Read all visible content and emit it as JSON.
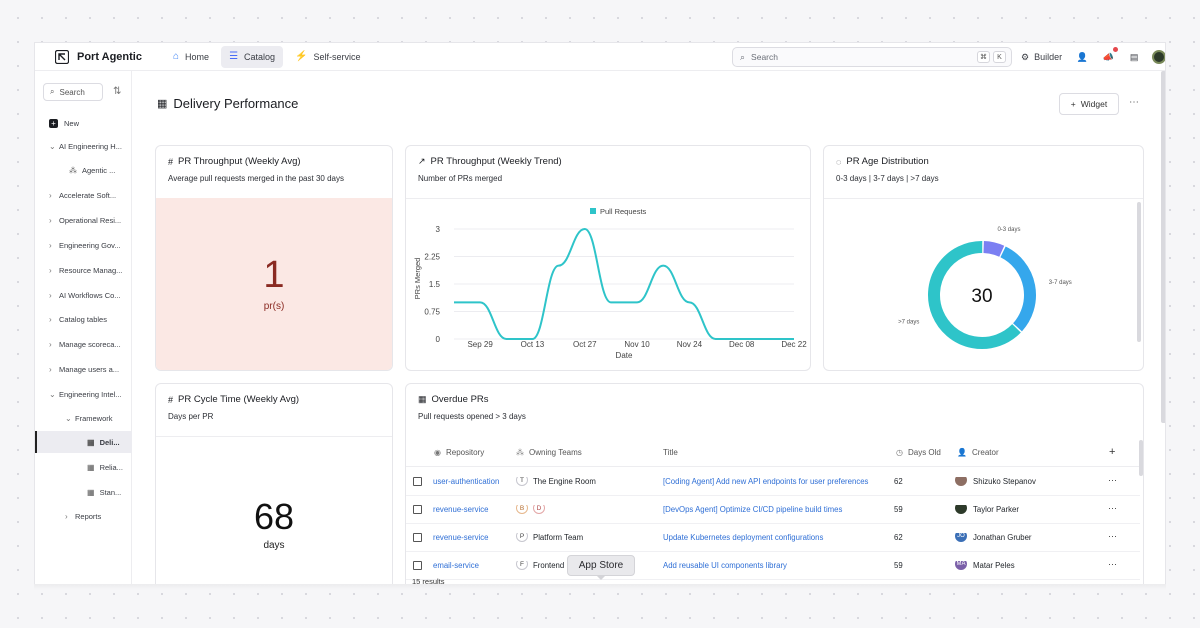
{
  "topbar": {
    "brand": "Port Agentic",
    "tabs": [
      {
        "label": "Home",
        "icon": "home-icon"
      },
      {
        "label": "Catalog",
        "icon": "catalog-icon"
      },
      {
        "label": "Self-service",
        "icon": "lightning-icon"
      }
    ],
    "search_placeholder": "Search",
    "shortcut_cmd": "⌘",
    "shortcut_key": "K",
    "builder_label": "Builder"
  },
  "sidebar": {
    "search_label": "Search",
    "new_label": "New",
    "items": [
      {
        "label": "AI Engineering H...",
        "level": 0,
        "expanded": true
      },
      {
        "label": "Agentic ...",
        "level": 2
      },
      {
        "label": "Accelerate Soft...",
        "level": 0
      },
      {
        "label": "Operational Resi...",
        "level": 0
      },
      {
        "label": "Engineering Gov...",
        "level": 0
      },
      {
        "label": "Resource Manag...",
        "level": 0
      },
      {
        "label": "AI Workflows Co...",
        "level": 0
      },
      {
        "label": "Catalog tables",
        "level": 0
      },
      {
        "label": "Manage scoreca...",
        "level": 0
      },
      {
        "label": "Manage users a...",
        "level": 0
      },
      {
        "label": "Engineering Intel...",
        "level": 0,
        "expanded": true
      },
      {
        "label": "Framework",
        "level": 1,
        "expanded": true
      },
      {
        "label": "Deli...",
        "level": 2,
        "active": true
      },
      {
        "label": "Relia...",
        "level": 2
      },
      {
        "label": "Stan...",
        "level": 2
      },
      {
        "label": "Reports",
        "level": 1
      }
    ]
  },
  "page": {
    "title": "Delivery Performance",
    "widget_button": "Widget"
  },
  "cards": {
    "throughput_avg": {
      "title": "PR Throughput (Weekly Avg)",
      "subtitle": "Average pull requests merged in the past 30 days",
      "value": "1",
      "unit": "pr(s)"
    },
    "throughput_trend": {
      "title": "PR Throughput (Weekly Trend)",
      "subtitle": "Number of PRs merged"
    },
    "age_distribution": {
      "title": "PR Age Distribution",
      "subtitle": "0-3 days | 3-7 days | >7 days",
      "center_value": "30"
    },
    "cycle_time": {
      "title": "PR Cycle Time (Weekly Avg)",
      "subtitle": "Days per PR",
      "value": "68",
      "unit": "days"
    },
    "overdue": {
      "title": "Overdue PRs",
      "subtitle": "Pull requests opened > 3 days",
      "columns": [
        "Repository",
        "Owning Teams",
        "Title",
        "Days Old",
        "Creator"
      ],
      "rows": [
        {
          "repo": "user-authentication",
          "teams": [
            "T"
          ],
          "team_name": "The Engine Room",
          "title": "[Coding Agent] Add new API endpoints for user preferences",
          "days": "62",
          "creator": "Shizuko Stepanov",
          "avatar": ""
        },
        {
          "repo": "revenue-service",
          "teams": [
            "B",
            "D"
          ],
          "team_name": "",
          "title": "[DevOps Agent] Optimize CI/CD pipeline build times",
          "days": "59",
          "creator": "Taylor Parker",
          "avatar": ""
        },
        {
          "repo": "revenue-service",
          "teams": [
            "P"
          ],
          "team_name": "Platform Team",
          "title": "Update Kubernetes deployment configurations",
          "days": "62",
          "creator": "Jonathan Gruber",
          "avatar": "JO"
        },
        {
          "repo": "email-service",
          "teams": [
            "F"
          ],
          "team_name": "Frontend",
          "title": "Add reusable UI components library",
          "days": "59",
          "creator": "Matar Peles",
          "avatar": "MA"
        }
      ],
      "footer": "15 results"
    }
  },
  "tooltip": "App Store",
  "chart_data": [
    {
      "type": "line",
      "title": "",
      "xlabel": "Date",
      "ylabel": "PRs Merged",
      "x_ticks": [
        "Sep 29",
        "Oct 13",
        "Oct 27",
        "Nov 10",
        "Nov 24",
        "Dec 08",
        "Dec 22"
      ],
      "y_ticks": [
        "0",
        "0.75",
        "1.5",
        "2.25",
        "3"
      ],
      "ylim": [
        0,
        3.3
      ],
      "series": [
        {
          "name": "Pull Requests",
          "color": "#2ec4c9",
          "x": [
            "Sep 22",
            "Sep 29",
            "Oct 06",
            "Oct 13",
            "Oct 20",
            "Oct 27",
            "Nov 03",
            "Nov 10",
            "Nov 17",
            "Nov 24",
            "Dec 01",
            "Dec 08",
            "Dec 15",
            "Dec 22"
          ],
          "values": [
            1,
            1,
            0,
            0,
            2,
            3,
            1,
            1,
            2,
            1,
            0,
            0,
            0,
            0
          ]
        }
      ],
      "legend": "top-center",
      "grid": true
    },
    {
      "type": "pie",
      "labels": [
        "0-3 days",
        "3-7 days",
        ">7 days"
      ],
      "values": [
        2,
        9,
        19
      ],
      "colors": [
        "#7b7ff2",
        "#35a7ec",
        "#2ec4c9"
      ],
      "center_label": "30"
    }
  ]
}
